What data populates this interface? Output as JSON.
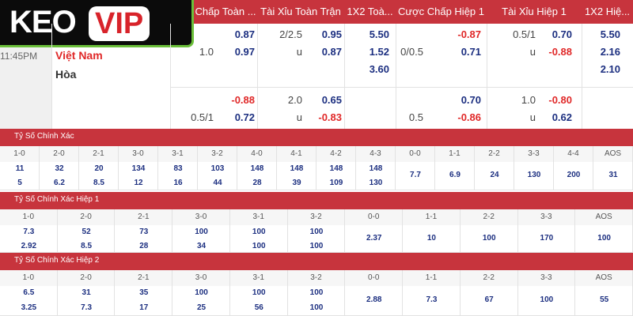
{
  "logo": {
    "part1": "KEO",
    "part2": "VIP"
  },
  "header": [
    "Chấp Toàn ...",
    "Tài Xỉu Toàn Trận",
    "1X2 Toà...",
    "Cược Chấp Hiệp 1",
    "Tài Xỉu Hiệp 1",
    "1X2 Hiệ..."
  ],
  "match": {
    "time": "11:45PM",
    "home": "Việt Nam",
    "draw": "Hòa",
    "rows": [
      [
        null,
        "0.87",
        "2/2.5",
        "0.95",
        "5.50",
        null,
        "-0.87",
        "0.5/1",
        "0.70",
        "5.50"
      ],
      [
        "1.0",
        "0.97",
        "u",
        "0.87",
        "1.52",
        "0/0.5",
        "0.71",
        "u",
        "-0.88",
        "2.16"
      ],
      [
        null,
        null,
        null,
        null,
        "3.60",
        null,
        null,
        null,
        null,
        "2.10"
      ],
      [
        null,
        "-0.88",
        "2.0",
        "0.65",
        null,
        null,
        "0.70",
        "1.0",
        "-0.80",
        null
      ],
      [
        "0.5/1",
        "0.72",
        "u",
        "-0.83",
        null,
        "0.5",
        "-0.86",
        "u",
        "0.62",
        null
      ]
    ]
  },
  "sections": [
    {
      "title": "Tỷ Số Chính Xác",
      "columns": [
        "1-0",
        "2-0",
        "2-1",
        "3-0",
        "3-1",
        "3-2",
        "4-0",
        "4-1",
        "4-2",
        "4-3",
        "0-0",
        "1-1",
        "2-2",
        "3-3",
        "4-4",
        "AOS"
      ],
      "rows": [
        [
          "11",
          "32",
          "20",
          "134",
          "83",
          "103",
          "148",
          "148",
          "148",
          "148"
        ],
        [
          "5",
          "6.2",
          "8.5",
          "12",
          "16",
          "44",
          "28",
          "39",
          "109",
          "130"
        ]
      ],
      "singles": [
        "7.7",
        "6.9",
        "24",
        "130",
        "200",
        "31"
      ]
    },
    {
      "title": "Tỷ Số Chính Xác Hiệp 1",
      "columns": [
        "1-0",
        "2-0",
        "2-1",
        "3-0",
        "3-1",
        "3-2",
        "0-0",
        "1-1",
        "2-2",
        "3-3",
        "AOS"
      ],
      "rows": [
        [
          "7.3",
          "52",
          "73",
          "100",
          "100",
          "100"
        ],
        [
          "2.92",
          "8.5",
          "28",
          "34",
          "100",
          "100"
        ]
      ],
      "singles": [
        "2.37",
        "10",
        "100",
        "170",
        "100"
      ]
    },
    {
      "title": "Tỷ Số Chính Xác Hiệp 2",
      "columns": [
        "1-0",
        "2-0",
        "2-1",
        "3-0",
        "3-1",
        "3-2",
        "0-0",
        "1-1",
        "2-2",
        "3-3",
        "AOS"
      ],
      "rows": [
        [
          "6.5",
          "31",
          "35",
          "100",
          "100",
          "100"
        ],
        [
          "3.25",
          "7.3",
          "17",
          "25",
          "56",
          "100"
        ]
      ],
      "singles": [
        "2.88",
        "7.3",
        "67",
        "100",
        "55"
      ]
    }
  ]
}
